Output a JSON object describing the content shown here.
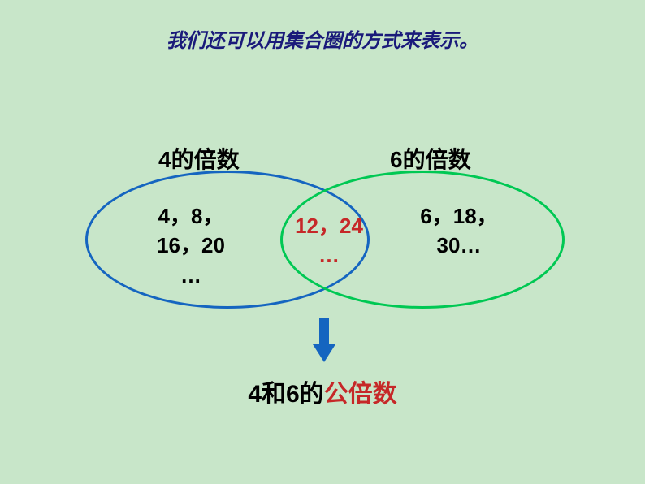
{
  "title": "我们还可以用集合圈的方式来表示。",
  "venn": {
    "type": "venn-diagram",
    "leftLabel": "4的倍数",
    "rightLabel": "6的倍数",
    "leftEllipseColor": "#1565c0",
    "rightEllipseColor": "#00c853",
    "leftContent": {
      "line1": "4，8，",
      "line2": "16，20",
      "line3": "…"
    },
    "centerContent": {
      "line1": "12，24",
      "line2": "…"
    },
    "rightContent": {
      "line1": "6，18，",
      "line2": "30…"
    },
    "arrowColor": "#1565c0",
    "bottomText": {
      "part1": "4和6的",
      "part2": "公倍数"
    }
  },
  "colors": {
    "background": "#c8e6c9",
    "titleColor": "#1a1a7a",
    "textColor": "#000000",
    "highlightColor": "#c62828"
  }
}
